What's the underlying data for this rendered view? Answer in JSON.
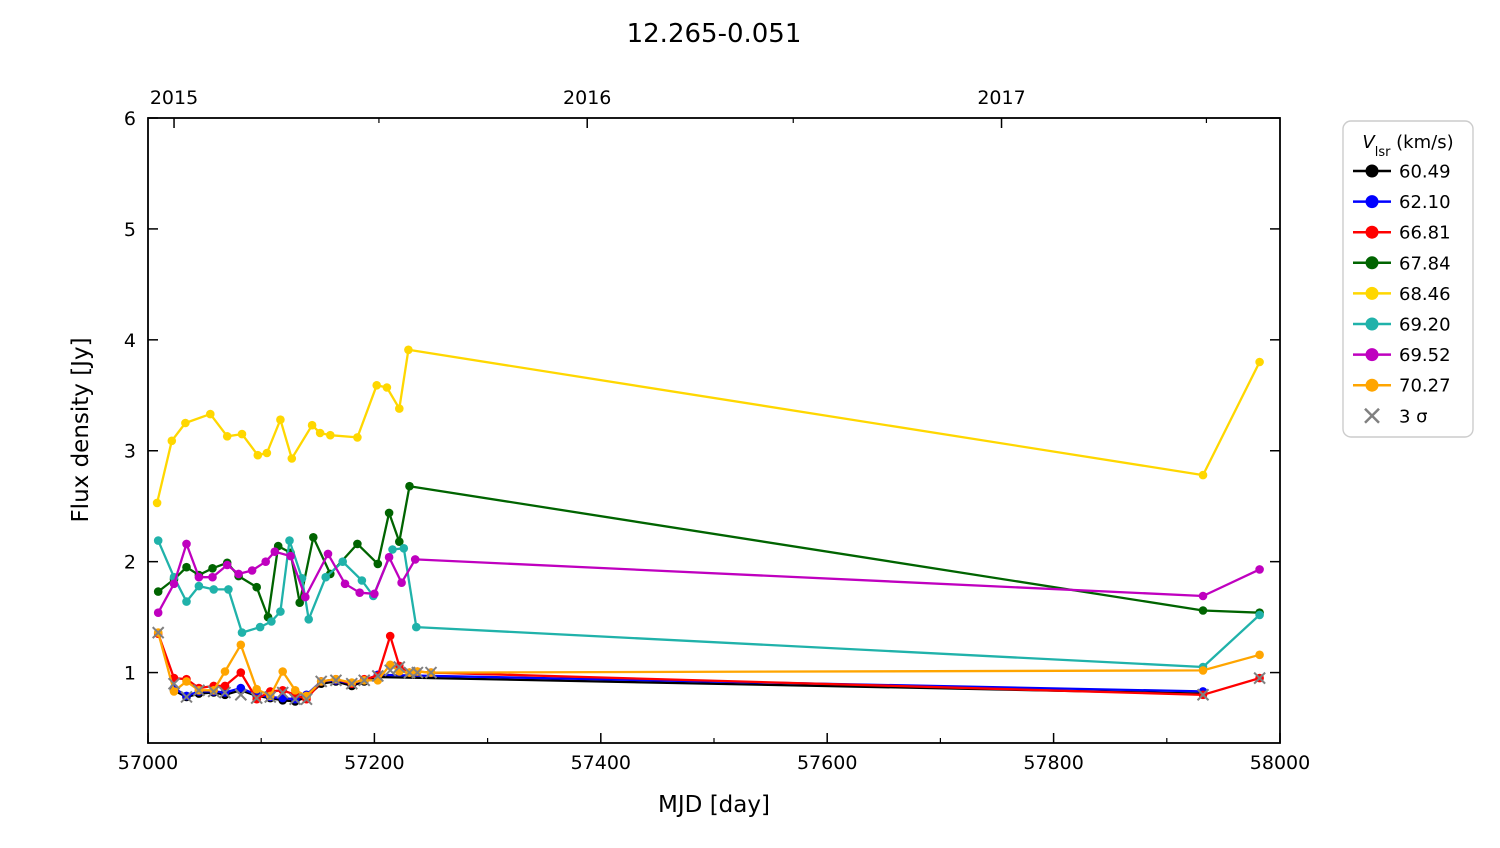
{
  "title": "12.265-0.051",
  "axes": {
    "xlabel": "MJD [day]",
    "ylabel": "Flux density [Jy]",
    "xlim": [
      57000,
      58000
    ],
    "ylim": [
      0.365,
      6.0
    ],
    "x_major_ticks": [
      57000,
      57200,
      57400,
      57600,
      57800,
      58000
    ],
    "x_minor_ticks": [
      57100,
      57300,
      57500,
      57700,
      57900
    ],
    "y_major_ticks": [
      1,
      2,
      3,
      4,
      5,
      6
    ],
    "top_year_ticks": [
      {
        "label": "2015",
        "mjd": 57023
      },
      {
        "label": "2016",
        "mjd": 57388
      },
      {
        "label": "2017",
        "mjd": 57754
      }
    ],
    "top_minor_ticks": [
      57204,
      57570,
      57935
    ]
  },
  "legend": {
    "title_symbol": "V",
    "title_subscript": "lsr",
    "title_units": " (km/s)",
    "sigma_label": "3 σ"
  },
  "chart_data": {
    "type": "line",
    "xlabel": "MJD [day]",
    "ylabel": "Flux density [Jy]",
    "series": [
      {
        "label": "60.49",
        "color": "#000000",
        "x": [
          57023,
          57034,
          57045,
          57058,
          57068,
          57082,
          57096,
          57108,
          57119,
          57130,
          57140,
          57153,
          57166,
          57180,
          57191,
          57203,
          57932
        ],
        "y": [
          0.84,
          0.78,
          0.81,
          0.82,
          0.8,
          0.84,
          0.79,
          0.77,
          0.75,
          0.74,
          0.78,
          0.9,
          0.92,
          0.88,
          0.92,
          0.96,
          0.81
        ]
      },
      {
        "label": "62.10",
        "color": "#0000ff",
        "x": [
          57023,
          57034,
          57045,
          57058,
          57068,
          57082,
          57096,
          57108,
          57119,
          57130,
          57140,
          57153,
          57166,
          57180,
          57191,
          57203,
          57932
        ],
        "y": [
          0.86,
          0.79,
          0.83,
          0.83,
          0.82,
          0.86,
          0.8,
          0.78,
          0.77,
          0.76,
          0.8,
          0.92,
          0.93,
          0.9,
          0.93,
          0.98,
          0.83
        ]
      },
      {
        "label": "66.81",
        "color": "#ff0000",
        "x": [
          57009,
          57023,
          57034,
          57045,
          57058,
          57068,
          57082,
          57096,
          57108,
          57119,
          57130,
          57140,
          57153,
          57166,
          57180,
          57191,
          57203,
          57214,
          57222,
          57231,
          57238,
          57250,
          57932,
          57982
        ],
        "y": [
          1.35,
          0.95,
          0.94,
          0.86,
          0.88,
          0.88,
          1.0,
          0.76,
          0.83,
          0.84,
          0.8,
          0.76,
          0.92,
          0.94,
          0.9,
          0.94,
          0.97,
          1.33,
          1.06,
          1.0,
          1.01,
          1.0,
          0.8,
          0.95
        ]
      },
      {
        "label": "67.84",
        "color": "#006400",
        "x": [
          57009,
          57023,
          57034,
          57045,
          57057,
          57070,
          57080,
          57096,
          57106,
          57115,
          57126,
          57134,
          57146,
          57161,
          57185,
          57203,
          57213,
          57222,
          57231,
          57932,
          57982
        ],
        "y": [
          1.73,
          1.84,
          1.95,
          1.88,
          1.94,
          1.99,
          1.87,
          1.77,
          1.5,
          2.14,
          2.08,
          1.63,
          2.22,
          1.89,
          2.16,
          1.98,
          2.44,
          2.18,
          2.68,
          1.56,
          1.54
        ]
      },
      {
        "label": "68.46",
        "color": "#ffd700",
        "x": [
          57008,
          57021,
          57033,
          57055,
          57070,
          57083,
          57097,
          57105,
          57117,
          57127,
          57145,
          57152,
          57161,
          57185,
          57202,
          57211,
          57222,
          57230,
          57932,
          57982
        ],
        "y": [
          2.53,
          3.09,
          3.25,
          3.33,
          3.13,
          3.15,
          2.96,
          2.98,
          3.28,
          2.93,
          3.23,
          3.16,
          3.14,
          3.12,
          3.59,
          3.57,
          3.38,
          3.91,
          2.78,
          3.8
        ]
      },
      {
        "label": "69.20",
        "color": "#20b2aa",
        "x": [
          57009,
          57023,
          57034,
          57045,
          57058,
          57071,
          57083,
          57099,
          57109,
          57117,
          57125,
          57136,
          57142,
          57157,
          57172,
          57189,
          57199,
          57216,
          57226,
          57237,
          57932,
          57982
        ],
        "y": [
          2.19,
          1.86,
          1.64,
          1.78,
          1.75,
          1.75,
          1.36,
          1.41,
          1.46,
          1.55,
          2.19,
          1.85,
          1.48,
          1.86,
          2.0,
          1.83,
          1.69,
          2.11,
          2.12,
          1.41,
          1.05,
          1.52
        ]
      },
      {
        "label": "69.52",
        "color": "#bf00bf",
        "x": [
          57009,
          57023,
          57034,
          57045,
          57057,
          57070,
          57080,
          57092,
          57104,
          57112,
          57126,
          57139,
          57159,
          57174,
          57187,
          57200,
          57213,
          57224,
          57236,
          57932,
          57982
        ],
        "y": [
          1.54,
          1.8,
          2.16,
          1.86,
          1.86,
          1.97,
          1.89,
          1.92,
          2.0,
          2.09,
          2.05,
          1.68,
          2.07,
          1.8,
          1.72,
          1.71,
          2.04,
          1.81,
          2.02,
          1.69,
          1.93
        ]
      },
      {
        "label": "70.27",
        "color": "#ffa500",
        "x": [
          57009,
          57023,
          57034,
          57045,
          57058,
          57068,
          57082,
          57096,
          57108,
          57119,
          57130,
          57140,
          57153,
          57166,
          57180,
          57191,
          57203,
          57214,
          57222,
          57231,
          57238,
          57250,
          57932,
          57982
        ],
        "y": [
          1.36,
          0.83,
          0.92,
          0.84,
          0.84,
          1.01,
          1.25,
          0.85,
          0.79,
          1.01,
          0.84,
          0.79,
          0.92,
          0.94,
          0.91,
          0.93,
          0.93,
          1.07,
          1.01,
          1.0,
          1.01,
          1.0,
          1.02,
          1.16
        ]
      }
    ],
    "sigma_markers": {
      "label": "3 σ",
      "color": "#808080",
      "x": [
        57009,
        57023,
        57034,
        57045,
        57058,
        57068,
        57082,
        57096,
        57108,
        57119,
        57130,
        57140,
        57153,
        57166,
        57180,
        57191,
        57203,
        57214,
        57222,
        57231,
        57238,
        57250,
        57932,
        57982
      ],
      "y": [
        1.36,
        0.9,
        0.78,
        0.84,
        0.83,
        0.82,
        0.8,
        0.77,
        0.78,
        0.82,
        0.76,
        0.76,
        0.92,
        0.93,
        0.9,
        0.93,
        0.97,
        1.02,
        1.05,
        1.0,
        1.0,
        1.0,
        0.8,
        0.95
      ]
    }
  }
}
